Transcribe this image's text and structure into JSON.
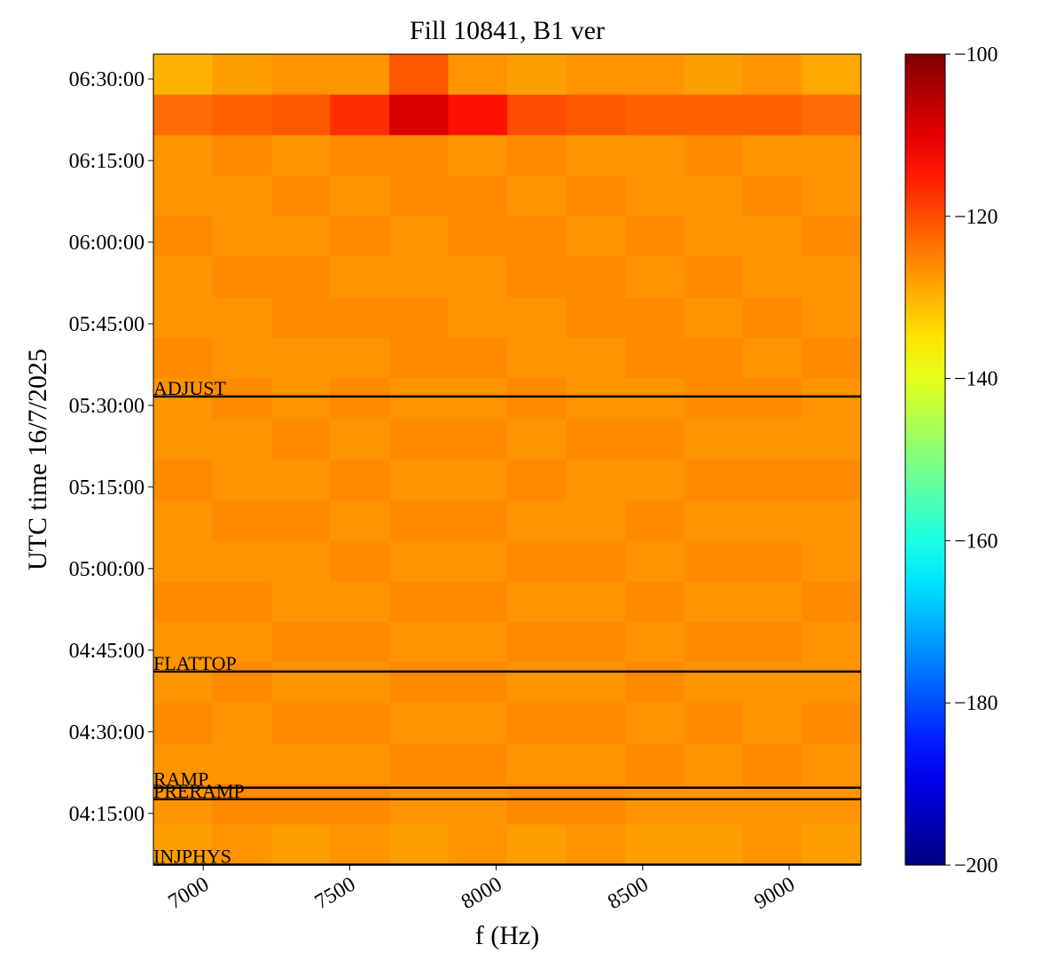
{
  "chart_data": {
    "type": "heatmap",
    "title": "Fill 10841, B1 ver",
    "xlabel": "f (Hz)",
    "ylabel": "UTC time 16/7/2025",
    "xlim": [
      6830,
      9245
    ],
    "xticks": [
      7000,
      7500,
      8000,
      8500,
      9000
    ],
    "ylim": [
      14730,
      23674
    ],
    "yticks": [
      {
        "value": 15300,
        "label": "04:15:00"
      },
      {
        "value": 16200,
        "label": "04:30:00"
      },
      {
        "value": 17100,
        "label": "04:45:00"
      },
      {
        "value": 18000,
        "label": "05:00:00"
      },
      {
        "value": 18900,
        "label": "05:15:00"
      },
      {
        "value": 19800,
        "label": "05:30:00"
      },
      {
        "value": 20700,
        "label": "05:45:00"
      },
      {
        "value": 21600,
        "label": "06:00:00"
      },
      {
        "value": 22500,
        "label": "06:15:00"
      },
      {
        "value": 23400,
        "label": "06:30:00"
      }
    ],
    "colormap": "jet",
    "clim": [
      -200,
      -100
    ],
    "cticks": [
      {
        "value": -100,
        "label": "−100"
      },
      {
        "value": -120,
        "label": "−120"
      },
      {
        "value": -140,
        "label": "−140"
      },
      {
        "value": -160,
        "label": "−160"
      },
      {
        "value": -180,
        "label": "−180"
      },
      {
        "value": -200,
        "label": "−200"
      }
    ],
    "events": [
      {
        "label": "ADJUST",
        "value": 19898
      },
      {
        "label": "FLATTOP",
        "value": 16865
      },
      {
        "label": "RAMP",
        "value": 15584
      },
      {
        "label": "PRERAMP",
        "value": 15456
      },
      {
        "label": "INJPHYS",
        "value": 14735
      }
    ],
    "event_color": "#000000",
    "z": [
      [
        -130,
        -128,
        -127,
        -127,
        -121,
        -127,
        -128,
        -127,
        -127,
        -128,
        -127,
        -129
      ],
      [
        -123,
        -122,
        -121,
        -117,
        -109,
        -114,
        -120,
        -121,
        -122,
        -122,
        -122,
        -123
      ],
      [
        -127,
        -126,
        -127,
        -126,
        -126,
        -127,
        -126,
        -127,
        -127,
        -126,
        -127,
        -127
      ],
      [
        -127,
        -127,
        -126,
        -127,
        -126,
        -126,
        -127,
        -126,
        -127,
        -127,
        -126,
        -127
      ],
      [
        -126,
        -127,
        -127,
        -126,
        -127,
        -126,
        -126,
        -127,
        -126,
        -127,
        -127,
        -126
      ],
      [
        -127,
        -126,
        -126,
        -127,
        -127,
        -127,
        -126,
        -126,
        -127,
        -126,
        -127,
        -127
      ],
      [
        -127,
        -127,
        -126,
        -126,
        -126,
        -127,
        -127,
        -126,
        -126,
        -127,
        -126,
        -127
      ],
      [
        -126,
        -127,
        -127,
        -127,
        -126,
        -126,
        -127,
        -127,
        -126,
        -126,
        -127,
        -126
      ],
      [
        -127,
        -126,
        -127,
        -126,
        -127,
        -127,
        -126,
        -127,
        -127,
        -126,
        -126,
        -127
      ],
      [
        -127,
        -127,
        -126,
        -127,
        -126,
        -126,
        -127,
        -126,
        -126,
        -127,
        -127,
        -127
      ],
      [
        -126,
        -127,
        -127,
        -126,
        -127,
        -127,
        -126,
        -127,
        -127,
        -126,
        -126,
        -126
      ],
      [
        -127,
        -126,
        -126,
        -127,
        -126,
        -126,
        -127,
        -127,
        -126,
        -127,
        -127,
        -127
      ],
      [
        -127,
        -127,
        -127,
        -126,
        -127,
        -127,
        -126,
        -126,
        -127,
        -126,
        -126,
        -127
      ],
      [
        -126,
        -126,
        -127,
        -127,
        -126,
        -126,
        -127,
        -127,
        -126,
        -127,
        -127,
        -126
      ],
      [
        -127,
        -127,
        -126,
        -126,
        -127,
        -127,
        -126,
        -126,
        -127,
        -126,
        -126,
        -127
      ],
      [
        -127,
        -126,
        -127,
        -127,
        -126,
        -126,
        -127,
        -127,
        -126,
        -127,
        -127,
        -127
      ],
      [
        -126,
        -127,
        -126,
        -126,
        -127,
        -127,
        -126,
        -126,
        -127,
        -126,
        -127,
        -126
      ],
      [
        -127,
        -127,
        -127,
        -127,
        -126,
        -126,
        -127,
        -127,
        -126,
        -127,
        -126,
        -127
      ],
      [
        -127,
        -126,
        -126,
        -126,
        -127,
        -127,
        -126,
        -126,
        -127,
        -127,
        -127,
        -127
      ],
      [
        -128,
        -127,
        -128,
        -127,
        -128,
        -127,
        -128,
        -127,
        -128,
        -128,
        -127,
        -128
      ]
    ]
  }
}
